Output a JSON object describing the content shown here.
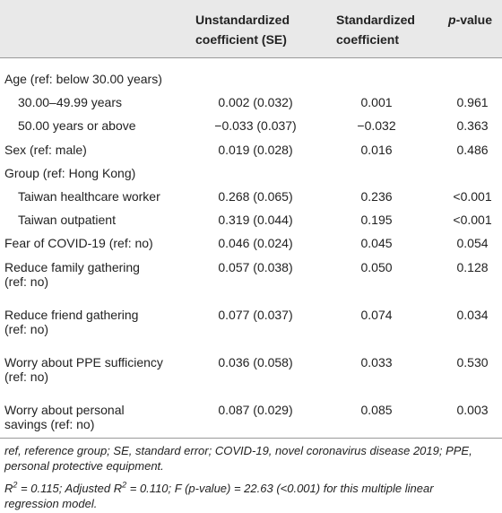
{
  "table": {
    "header": {
      "unstandardized": [
        "Unstandardized",
        "coefficient (SE)"
      ],
      "standardized": [
        "Standardized",
        "coefficient"
      ],
      "p_value": {
        "p": "p",
        "rest": "-value"
      }
    },
    "rows": [
      {
        "label": [
          "Age (ref: below 30.00 years)"
        ],
        "sub": [
          {
            "label": [
              "30.00–49.99 years"
            ],
            "cells": [
              "0.002 (0.032)",
              "0.001",
              "0.961"
            ]
          },
          {
            "label": [
              "50.00 years or above"
            ],
            "cells": [
              "−0.033 (0.037)",
              "−0.032",
              "0.363"
            ]
          }
        ]
      },
      {
        "label": [
          "Sex (ref: male)"
        ],
        "cells": [
          "0.019 (0.028)",
          "0.016",
          "0.486"
        ]
      },
      {
        "label": [
          "Group (ref: Hong Kong)"
        ],
        "sub": [
          {
            "label": [
              "Taiwan healthcare worker"
            ],
            "cells": [
              "0.268 (0.065)",
              "0.236",
              "<0.001"
            ]
          },
          {
            "label": [
              "Taiwan outpatient"
            ],
            "cells": [
              "0.319 (0.044)",
              "0.195",
              "<0.001"
            ]
          }
        ]
      },
      {
        "label": [
          "Fear of COVID-19 (ref: no)"
        ],
        "cells": [
          "0.046 (0.024)",
          "0.045",
          "0.054"
        ]
      },
      {
        "label": [
          "Reduce family gathering",
          "(ref: no)"
        ],
        "cells": [
          "0.057 (0.038)",
          "0.050",
          "0.128"
        ]
      },
      {
        "label": [
          "Reduce friend gathering",
          "(ref: no)"
        ],
        "cells": [
          "0.077 (0.037)",
          "0.074",
          "0.034"
        ]
      },
      {
        "label": [
          "Worry about PPE sufficiency",
          "(ref: no)"
        ],
        "cells": [
          "0.036 (0.058)",
          "0.033",
          "0.530"
        ]
      },
      {
        "label": [
          "Worry about personal",
          "savings (ref: no)"
        ],
        "cells": [
          "0.087 (0.029)",
          "0.085",
          "0.003"
        ]
      }
    ],
    "footnote": {
      "abbreviations": [
        "ref, reference group; SE, standard error; COVID-19, novel coronavirus disease 2019; PPE,",
        "personal protective equipment."
      ],
      "statistics": [
        [
          "R",
          "2",
          " = 0.115; Adjusted R",
          "2",
          " = 0.110; F (p-value) = 22.63 (<0.001) for this multiple linear"
        ],
        [
          "regression model."
        ]
      ]
    }
  }
}
